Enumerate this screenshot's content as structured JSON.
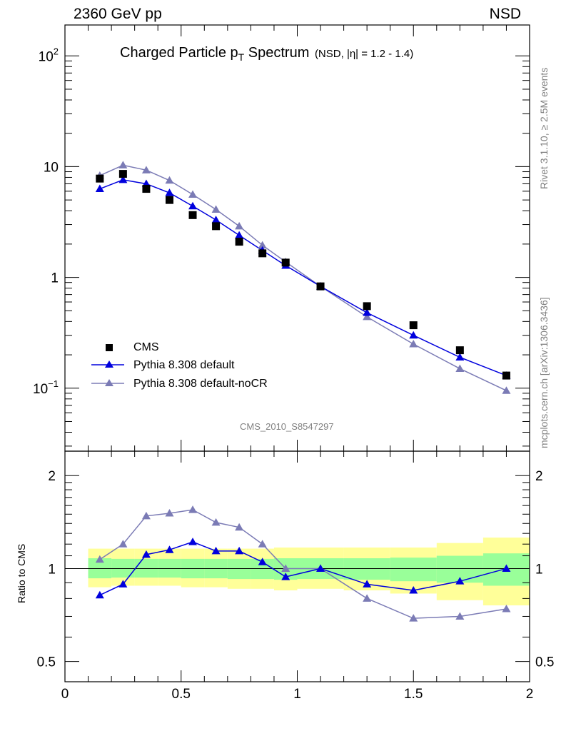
{
  "header": {
    "left": "2360 GeV pp",
    "right": "NSD"
  },
  "side": {
    "rivet": "Rivet 3.1.10, ≥ 2.5M events",
    "mcplots": "mcplots.cern.ch [arXiv:1306.3436]"
  },
  "colors": {
    "data": "#000000",
    "default": "#0000dd",
    "nocr": "#7b7bb5",
    "band_outer": "#ffff99",
    "band_inner": "#99ff99"
  },
  "chart_data": [
    {
      "type": "scatter",
      "panel": "main",
      "title": "Charged Particle p",
      "title_sub": "T",
      "title_rest": " Spectrum",
      "subtitle": "(NSD, |η| = 1.2 - 1.4)",
      "watermark": "CMS_2010_S8547297",
      "yscale": "log",
      "xlim": [
        0,
        2
      ],
      "ylim": [
        0.027,
        190
      ],
      "ytick_labels": [
        {
          "value": 100,
          "base": "10",
          "exp": "2"
        },
        {
          "value": 10,
          "base": "10",
          "exp": ""
        },
        {
          "value": 1,
          "base": "1",
          "exp": ""
        },
        {
          "value": 0.1,
          "base": "10",
          "exp": "−1"
        }
      ],
      "legend_position": "bottom-left",
      "series": [
        {
          "name": "CMS",
          "marker": "square",
          "x": [
            0.15,
            0.25,
            0.35,
            0.45,
            0.55,
            0.65,
            0.75,
            0.85,
            0.95,
            1.1,
            1.3,
            1.5,
            1.7,
            1.9
          ],
          "y": [
            7.8,
            8.6,
            6.3,
            5.0,
            3.65,
            2.9,
            2.1,
            1.65,
            1.36,
            0.83,
            0.55,
            0.37,
            0.22,
            0.13
          ]
        },
        {
          "name": "Pythia 8.308 default",
          "marker": "triangle",
          "x": [
            0.15,
            0.25,
            0.35,
            0.45,
            0.55,
            0.65,
            0.75,
            0.85,
            0.95,
            1.1,
            1.3,
            1.5,
            1.7,
            1.9
          ],
          "y": [
            6.3,
            7.6,
            7.0,
            5.8,
            4.4,
            3.3,
            2.4,
            1.75,
            1.28,
            0.83,
            0.48,
            0.3,
            0.19,
            0.13
          ]
        },
        {
          "name": "Pythia 8.308 default-noCR",
          "marker": "triangle",
          "x": [
            0.15,
            0.25,
            0.35,
            0.45,
            0.55,
            0.65,
            0.75,
            0.85,
            0.95,
            1.1,
            1.3,
            1.5,
            1.7,
            1.9
          ],
          "y": [
            8.3,
            10.3,
            9.3,
            7.5,
            5.6,
            4.1,
            2.9,
            1.95,
            1.38,
            0.83,
            0.44,
            0.25,
            0.15,
            0.095
          ]
        }
      ]
    },
    {
      "type": "line",
      "panel": "ratio",
      "ylabel": "Ratio to CMS",
      "yscale": "log",
      "xlim": [
        0,
        2
      ],
      "ylim": [
        0.43,
        2.4
      ],
      "ytick_labels": [
        "2",
        "1",
        "0.5"
      ],
      "xtick_labels": [
        "0",
        "0.5",
        "1",
        "1.5",
        "2"
      ],
      "bands": {
        "x_edges": [
          0.1,
          0.2,
          0.3,
          0.4,
          0.5,
          0.6,
          0.7,
          0.8,
          0.9,
          1.0,
          1.2,
          1.4,
          1.6,
          1.8,
          2.0
        ],
        "outer_low": [
          0.87,
          0.88,
          0.88,
          0.88,
          0.87,
          0.87,
          0.86,
          0.86,
          0.85,
          0.86,
          0.85,
          0.83,
          0.79,
          0.76
        ],
        "outer_high": [
          1.16,
          1.16,
          1.16,
          1.16,
          1.16,
          1.16,
          1.16,
          1.16,
          1.17,
          1.17,
          1.17,
          1.17,
          1.21,
          1.26
        ],
        "inner_low": [
          0.93,
          0.935,
          0.935,
          0.935,
          0.93,
          0.93,
          0.925,
          0.925,
          0.92,
          0.925,
          0.92,
          0.91,
          0.9,
          0.88
        ],
        "inner_high": [
          1.08,
          1.075,
          1.075,
          1.075,
          1.075,
          1.075,
          1.075,
          1.075,
          1.08,
          1.08,
          1.08,
          1.085,
          1.1,
          1.12
        ]
      },
      "series": [
        {
          "name": "Pythia 8.308 default",
          "x": [
            0.15,
            0.25,
            0.35,
            0.45,
            0.55,
            0.65,
            0.75,
            0.85,
            0.95,
            1.1,
            1.3,
            1.5,
            1.7,
            1.9
          ],
          "y": [
            0.82,
            0.89,
            1.11,
            1.15,
            1.22,
            1.14,
            1.14,
            1.05,
            0.94,
            1.0,
            0.89,
            0.85,
            0.91,
            1.0
          ]
        },
        {
          "name": "Pythia 8.308 default-noCR",
          "x": [
            0.15,
            0.25,
            0.35,
            0.45,
            0.55,
            0.65,
            0.75,
            0.85,
            0.95,
            1.1,
            1.3,
            1.5,
            1.7,
            1.9
          ],
          "y": [
            1.07,
            1.2,
            1.48,
            1.51,
            1.55,
            1.41,
            1.36,
            1.2,
            1.0,
            1.0,
            0.8,
            0.69,
            0.7,
            0.74
          ]
        }
      ]
    }
  ]
}
